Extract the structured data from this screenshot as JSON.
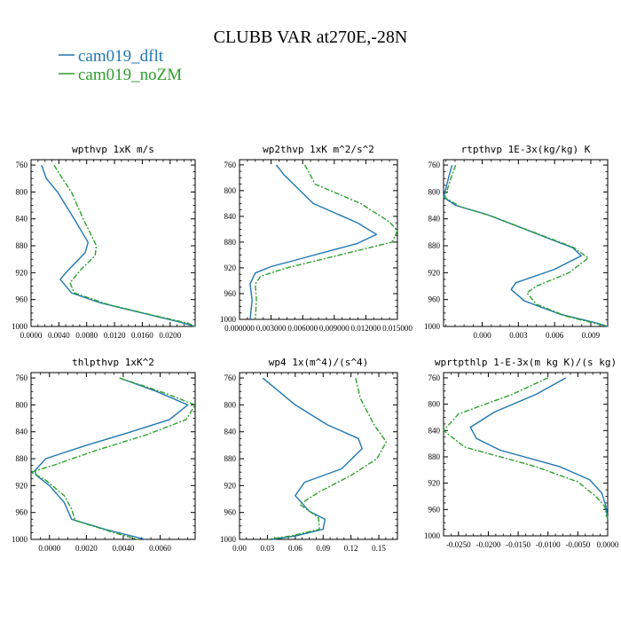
{
  "figure_title": "CLUBB VAR at270E,-28N",
  "legend": [
    {
      "label": "cam019_dflt",
      "color": "#1f77b4"
    },
    {
      "label": "cam019_noZM",
      "color": "#2ca02c"
    }
  ],
  "chart_data": [
    {
      "type": "line",
      "title": "wpthvp  1xK m/s",
      "xlim": [
        0.0,
        0.0236
      ],
      "ylim": [
        1000,
        752
      ],
      "y_inverted": true,
      "xticks": [
        0.0,
        0.004,
        0.008,
        0.012,
        0.016,
        0.02
      ],
      "xtick_labels": [
        "0.0000",
        "0.0040",
        "0.0080",
        "0.0120",
        "0.0160",
        "0.0200"
      ],
      "yticks": [
        760,
        800,
        840,
        880,
        920,
        960,
        1000
      ],
      "series": [
        {
          "name": "cam019_dflt",
          "style": "solid",
          "points": [
            [
              0.0015,
              760
            ],
            [
              0.0022,
              780
            ],
            [
              0.0038,
              800
            ],
            [
              0.0062,
              840
            ],
            [
              0.0082,
              875
            ],
            [
              0.0078,
              890
            ],
            [
              0.005,
              920
            ],
            [
              0.0042,
              930
            ],
            [
              0.0058,
              950
            ],
            [
              0.01,
              965
            ],
            [
              0.016,
              980
            ],
            [
              0.0212,
              993
            ],
            [
              0.0236,
              1000
            ]
          ]
        },
        {
          "name": "cam019_noZM",
          "style": "dash-dot",
          "points": [
            [
              0.0033,
              760
            ],
            [
              0.0045,
              780
            ],
            [
              0.0058,
              800
            ],
            [
              0.0075,
              840
            ],
            [
              0.0094,
              880
            ],
            [
              0.0092,
              895
            ],
            [
              0.0072,
              915
            ],
            [
              0.0056,
              935
            ],
            [
              0.0062,
              950
            ],
            [
              0.011,
              967
            ],
            [
              0.017,
              982
            ],
            [
              0.0225,
              995
            ],
            [
              0.0236,
              1000
            ]
          ]
        }
      ]
    },
    {
      "type": "line",
      "title": "wp2thvp  1xK m^2/s^2",
      "xlim": [
        0.0,
        0.015
      ],
      "ylim": [
        1000,
        752
      ],
      "y_inverted": true,
      "xticks": [
        0.0,
        0.003,
        0.006,
        0.009,
        0.012,
        0.015
      ],
      "xtick_labels": [
        "0.000000",
        "0.003000",
        "0.006000",
        "0.009000",
        "0.012000",
        "0.015000"
      ],
      "yticks": [
        760,
        800,
        840,
        880,
        920,
        960,
        1000
      ],
      "series": [
        {
          "name": "cam019_dflt",
          "style": "solid",
          "points": [
            [
              0.0035,
              760
            ],
            [
              0.0042,
              775
            ],
            [
              0.007,
              820
            ],
            [
              0.0112,
              850
            ],
            [
              0.013,
              868
            ],
            [
              0.0112,
              882
            ],
            [
              0.006,
              905
            ],
            [
              0.003,
              918
            ],
            [
              0.0015,
              928
            ],
            [
              0.001,
              945
            ],
            [
              0.0012,
              970
            ],
            [
              0.001,
              1000
            ]
          ]
        },
        {
          "name": "cam019_noZM",
          "style": "dash-dot",
          "points": [
            [
              0.0062,
              760
            ],
            [
              0.0072,
              790
            ],
            [
              0.0115,
              820
            ],
            [
              0.0142,
              848
            ],
            [
              0.015,
              862
            ],
            [
              0.0145,
              880
            ],
            [
              0.009,
              902
            ],
            [
              0.0045,
              920
            ],
            [
              0.002,
              933
            ],
            [
              0.0015,
              945
            ],
            [
              0.0016,
              970
            ],
            [
              0.0015,
              1000
            ]
          ]
        }
      ]
    },
    {
      "type": "line",
      "title": "rtpthvp  1E-3x(kg/kg) K",
      "xlim": [
        -0.0032,
        0.0104
      ],
      "ylim": [
        1000,
        752
      ],
      "y_inverted": true,
      "xticks": [
        0.0,
        0.003,
        0.006,
        0.009
      ],
      "xtick_labels": [
        "0.000",
        "0.003",
        "0.006",
        "0.009"
      ],
      "yticks": [
        760,
        800,
        840,
        880,
        920,
        960,
        1000
      ],
      "series": [
        {
          "name": "cam019_dflt",
          "style": "solid",
          "points": [
            [
              -0.0025,
              760
            ],
            [
              -0.0028,
              780
            ],
            [
              -0.0032,
              808
            ],
            [
              -0.0022,
              820
            ],
            [
              0.0003,
              833
            ],
            [
              0.0035,
              855
            ],
            [
              0.0075,
              883
            ],
            [
              0.0082,
              895
            ],
            [
              0.006,
              915
            ],
            [
              0.0028,
              935
            ],
            [
              0.0024,
              945
            ],
            [
              0.0035,
              962
            ],
            [
              0.0065,
              982
            ],
            [
              0.0095,
              995
            ],
            [
              0.0104,
              1000
            ]
          ]
        },
        {
          "name": "cam019_noZM",
          "style": "dash-dot",
          "points": [
            [
              -0.0022,
              760
            ],
            [
              -0.0026,
              780
            ],
            [
              -0.0031,
              808
            ],
            [
              -0.0018,
              822
            ],
            [
              0.0008,
              836
            ],
            [
              0.004,
              858
            ],
            [
              0.0075,
              882
            ],
            [
              0.0088,
              898
            ],
            [
              0.0072,
              920
            ],
            [
              0.0045,
              940
            ],
            [
              0.0037,
              950
            ],
            [
              0.0045,
              967
            ],
            [
              0.007,
              985
            ],
            [
              0.0104,
              1000
            ]
          ]
        }
      ]
    },
    {
      "type": "line",
      "title": "thlpthvp  1xK^2",
      "xlim": [
        -0.001,
        0.0079
      ],
      "ylim": [
        1000,
        752
      ],
      "y_inverted": true,
      "xticks": [
        0.0,
        0.002,
        0.004,
        0.006
      ],
      "xtick_labels": [
        "0.0000",
        "0.0020",
        "0.0040",
        "0.0060"
      ],
      "yticks": [
        760,
        800,
        840,
        880,
        920,
        960,
        1000
      ],
      "series": [
        {
          "name": "cam019_dflt",
          "style": "solid",
          "points": [
            [
              0.0038,
              760
            ],
            [
              0.0058,
              780
            ],
            [
              0.0075,
              800
            ],
            [
              0.0065,
              822
            ],
            [
              0.0042,
              842
            ],
            [
              0.002,
              860
            ],
            [
              -0.0002,
              880
            ],
            [
              -0.0008,
              898
            ],
            [
              -0.0007,
              905
            ],
            [
              0.0,
              920
            ],
            [
              0.0008,
              945
            ],
            [
              0.0012,
              970
            ],
            [
              0.003,
              985
            ],
            [
              0.0052,
              1000
            ]
          ]
        },
        {
          "name": "cam019_noZM",
          "style": "dash-dot",
          "points": [
            [
              0.0038,
              760
            ],
            [
              0.0062,
              782
            ],
            [
              0.0079,
              800
            ],
            [
              0.0074,
              822
            ],
            [
              0.0052,
              845
            ],
            [
              0.0025,
              868
            ],
            [
              0.0002,
              890
            ],
            [
              -0.001,
              900
            ],
            [
              -0.0002,
              912
            ],
            [
              0.0008,
              935
            ],
            [
              0.0012,
              955
            ],
            [
              0.0014,
              972
            ],
            [
              0.0035,
              990
            ],
            [
              0.0048,
              1000
            ]
          ]
        }
      ]
    },
    {
      "type": "line",
      "title": "wp4  1x(m^4)/(s^4)",
      "xlim": [
        0.0,
        0.17
      ],
      "ylim": [
        1000,
        752
      ],
      "y_inverted": true,
      "xticks": [
        0.0,
        0.03,
        0.06,
        0.09,
        0.12,
        0.15
      ],
      "xtick_labels": [
        "0.00",
        "0.03",
        "0.06",
        "0.09",
        "0.12",
        "0.15"
      ],
      "yticks": [
        760,
        800,
        840,
        880,
        920,
        960,
        1000
      ],
      "series": [
        {
          "name": "cam019_dflt",
          "style": "solid",
          "points": [
            [
              0.025,
              760
            ],
            [
              0.06,
              800
            ],
            [
              0.095,
              830
            ],
            [
              0.128,
              850
            ],
            [
              0.132,
              865
            ],
            [
              0.11,
              895
            ],
            [
              0.07,
              915
            ],
            [
              0.06,
              935
            ],
            [
              0.075,
              958
            ],
            [
              0.092,
              970
            ],
            [
              0.09,
              985
            ],
            [
              0.06,
              995
            ],
            [
              0.035,
              1000
            ]
          ]
        },
        {
          "name": "cam019_noZM",
          "style": "dash-dot",
          "points": [
            [
              0.125,
              760
            ],
            [
              0.13,
              790
            ],
            [
              0.145,
              830
            ],
            [
              0.158,
              855
            ],
            [
              0.148,
              880
            ],
            [
              0.12,
              905
            ],
            [
              0.085,
              930
            ],
            [
              0.065,
              948
            ],
            [
              0.085,
              968
            ],
            [
              0.086,
              985
            ],
            [
              0.055,
              995
            ],
            [
              0.03,
              1000
            ]
          ]
        }
      ]
    },
    {
      "type": "line",
      "title": "wprtpthlp  1-E-3x(m kg K)/(s kg)",
      "xlim": [
        -0.0275,
        0.0
      ],
      "ylim": [
        1000,
        752
      ],
      "y_inverted": true,
      "xticks": [
        -0.025,
        -0.02,
        -0.015,
        -0.01,
        -0.005,
        0.0
      ],
      "xtick_labels": [
        "-0.0250",
        "-0.0200",
        "-0.0150",
        "-0.0100",
        "-0.0050",
        "0.0000"
      ],
      "yticks": [
        760,
        800,
        840,
        880,
        920,
        960,
        1000
      ],
      "series": [
        {
          "name": "cam019_dflt",
          "style": "solid",
          "points": [
            [
              -0.007,
              760
            ],
            [
              -0.012,
              785
            ],
            [
              -0.019,
              812
            ],
            [
              -0.023,
              835
            ],
            [
              -0.022,
              852
            ],
            [
              -0.018,
              870
            ],
            [
              -0.008,
              895
            ],
            [
              -0.003,
              915
            ],
            [
              -0.001,
              935
            ],
            [
              -0.0003,
              955
            ],
            [
              0.0,
              975
            ]
          ]
        },
        {
          "name": "cam019_noZM",
          "style": "dash-dot",
          "points": [
            [
              -0.01,
              760
            ],
            [
              -0.016,
              785
            ],
            [
              -0.025,
              815
            ],
            [
              -0.0275,
              840
            ],
            [
              -0.024,
              865
            ],
            [
              -0.012,
              895
            ],
            [
              -0.005,
              918
            ],
            [
              -0.002,
              940
            ],
            [
              -0.0005,
              955
            ],
            [
              0.0,
              975
            ]
          ]
        }
      ]
    }
  ]
}
